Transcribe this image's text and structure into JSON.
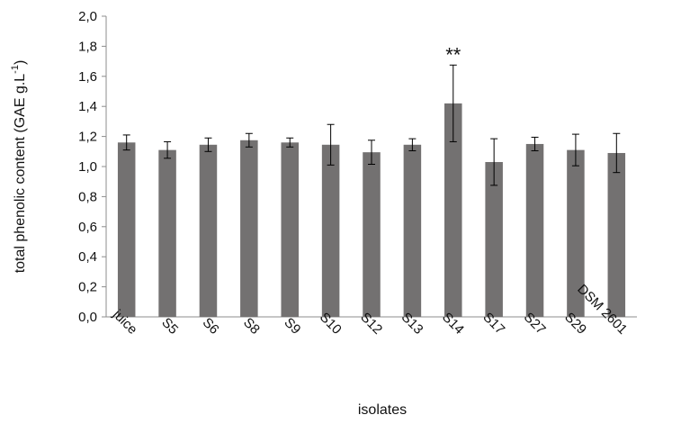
{
  "chart_data": {
    "type": "bar",
    "categories": [
      "juice",
      "S5",
      "S6",
      "S8",
      "S9",
      "S10",
      "S12",
      "S13",
      "S14",
      "S17",
      "S27",
      "S29",
      "DSM 2601"
    ],
    "values": [
      1.16,
      1.11,
      1.145,
      1.175,
      1.16,
      1.145,
      1.095,
      1.145,
      1.42,
      1.03,
      1.15,
      1.11,
      1.09
    ],
    "errors": [
      0.05,
      0.055,
      0.045,
      0.045,
      0.03,
      0.135,
      0.08,
      0.04,
      0.255,
      0.155,
      0.045,
      0.105,
      0.13
    ],
    "title": "",
    "xlabel": "isolates",
    "ylabel_main": "total phenolic content (GAE g.L",
    "ylabel_sup": "-1",
    "ylabel_close": ")",
    "ylim": [
      0,
      2.0
    ],
    "ytick_labels": [
      "0,0",
      "0,2",
      "0,4",
      "0,6",
      "0,8",
      "1,0",
      "1,2",
      "1,4",
      "1,6",
      "1,8",
      "2,0"
    ],
    "grid": false,
    "legend": "none",
    "annotation": {
      "category": "S14",
      "text": "**"
    },
    "bar_color": "#737171",
    "axis_color": "#8c8c8c"
  }
}
